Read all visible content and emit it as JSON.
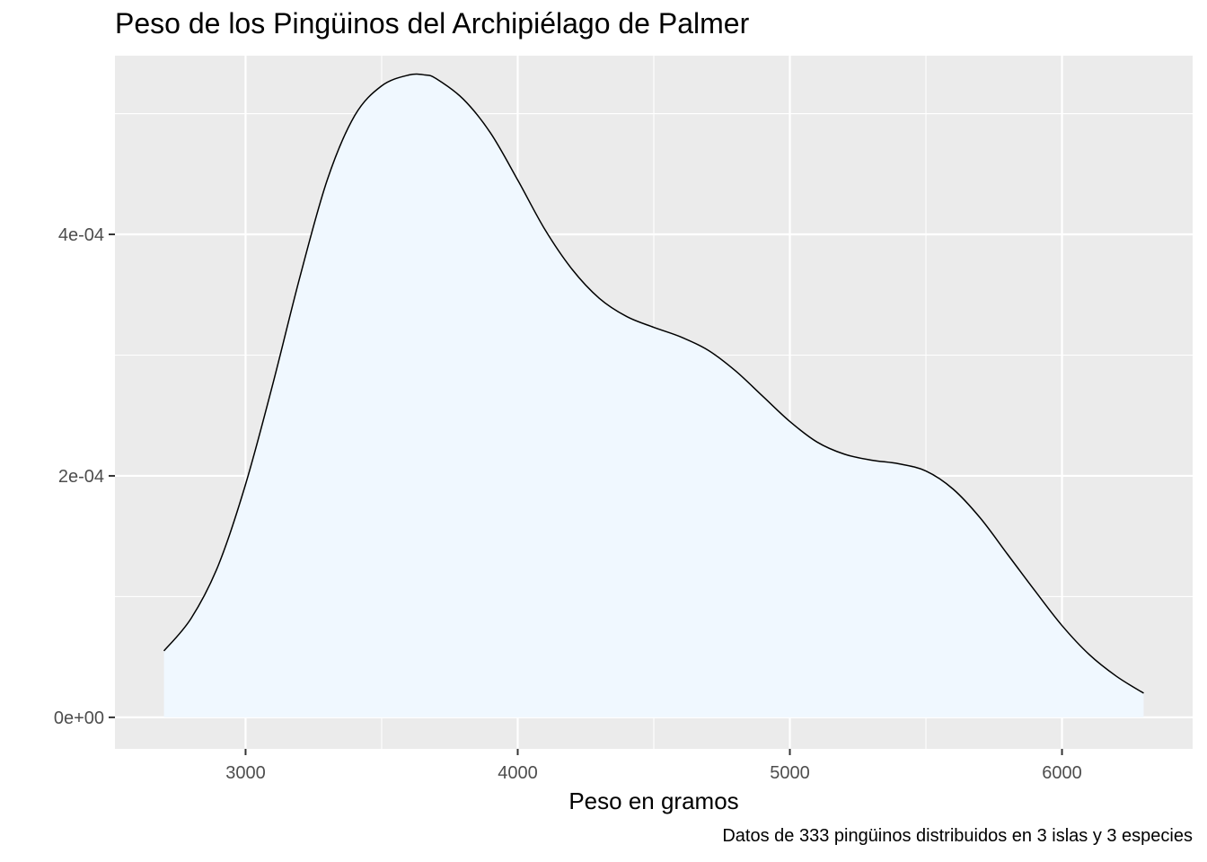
{
  "chart_data": {
    "type": "area",
    "title": "Peso de los Pingüinos del Archipiélago de Palmer",
    "xlabel": "Peso en gramos",
    "ylabel": "",
    "caption": "Datos de 333 pingüinos distribuidos en 3 islas y 3 especies",
    "xlim": [
      2520,
      6480
    ],
    "ylim": [
      -2.61e-05,
      0.000548
    ],
    "x_ticks": [
      3000,
      4000,
      5000,
      6000
    ],
    "x_tick_labels": [
      "3000",
      "4000",
      "5000",
      "6000"
    ],
    "y_ticks": [
      0,
      0.0002,
      0.0004
    ],
    "y_tick_labels": [
      "0e+00",
      "2e-04",
      "4e-04"
    ],
    "grid": true,
    "colors": {
      "panel_background": "#ebebeb",
      "grid": "#ffffff",
      "fill": "#f0f8ff",
      "line": "#000000"
    },
    "series": [
      {
        "x": [
          2700,
          2800,
          2900,
          3000,
          3100,
          3200,
          3300,
          3400,
          3500,
          3600,
          3660,
          3700,
          3800,
          3900,
          4000,
          4100,
          4200,
          4300,
          4400,
          4500,
          4600,
          4700,
          4800,
          4900,
          5000,
          5100,
          5200,
          5300,
          5400,
          5500,
          5600,
          5700,
          5800,
          5900,
          6000,
          6100,
          6200,
          6300
        ],
        "values": [
          5.5e-05,
          8.2e-05,
          0.000126,
          0.000193,
          0.000276,
          0.000365,
          0.000445,
          0.000498,
          0.000523,
          0.000532,
          0.000532,
          0.000529,
          0.000512,
          0.000484,
          0.000445,
          0.000404,
          0.000371,
          0.000347,
          0.000332,
          0.000323,
          0.000315,
          0.000304,
          0.000287,
          0.000266,
          0.000245,
          0.000228,
          0.000218,
          0.000213,
          0.00021,
          0.000204,
          0.000189,
          0.000165,
          0.000135,
          0.000105,
          7.6e-05,
          5.2e-05,
          3.4e-05,
          2e-05
        ]
      }
    ]
  }
}
